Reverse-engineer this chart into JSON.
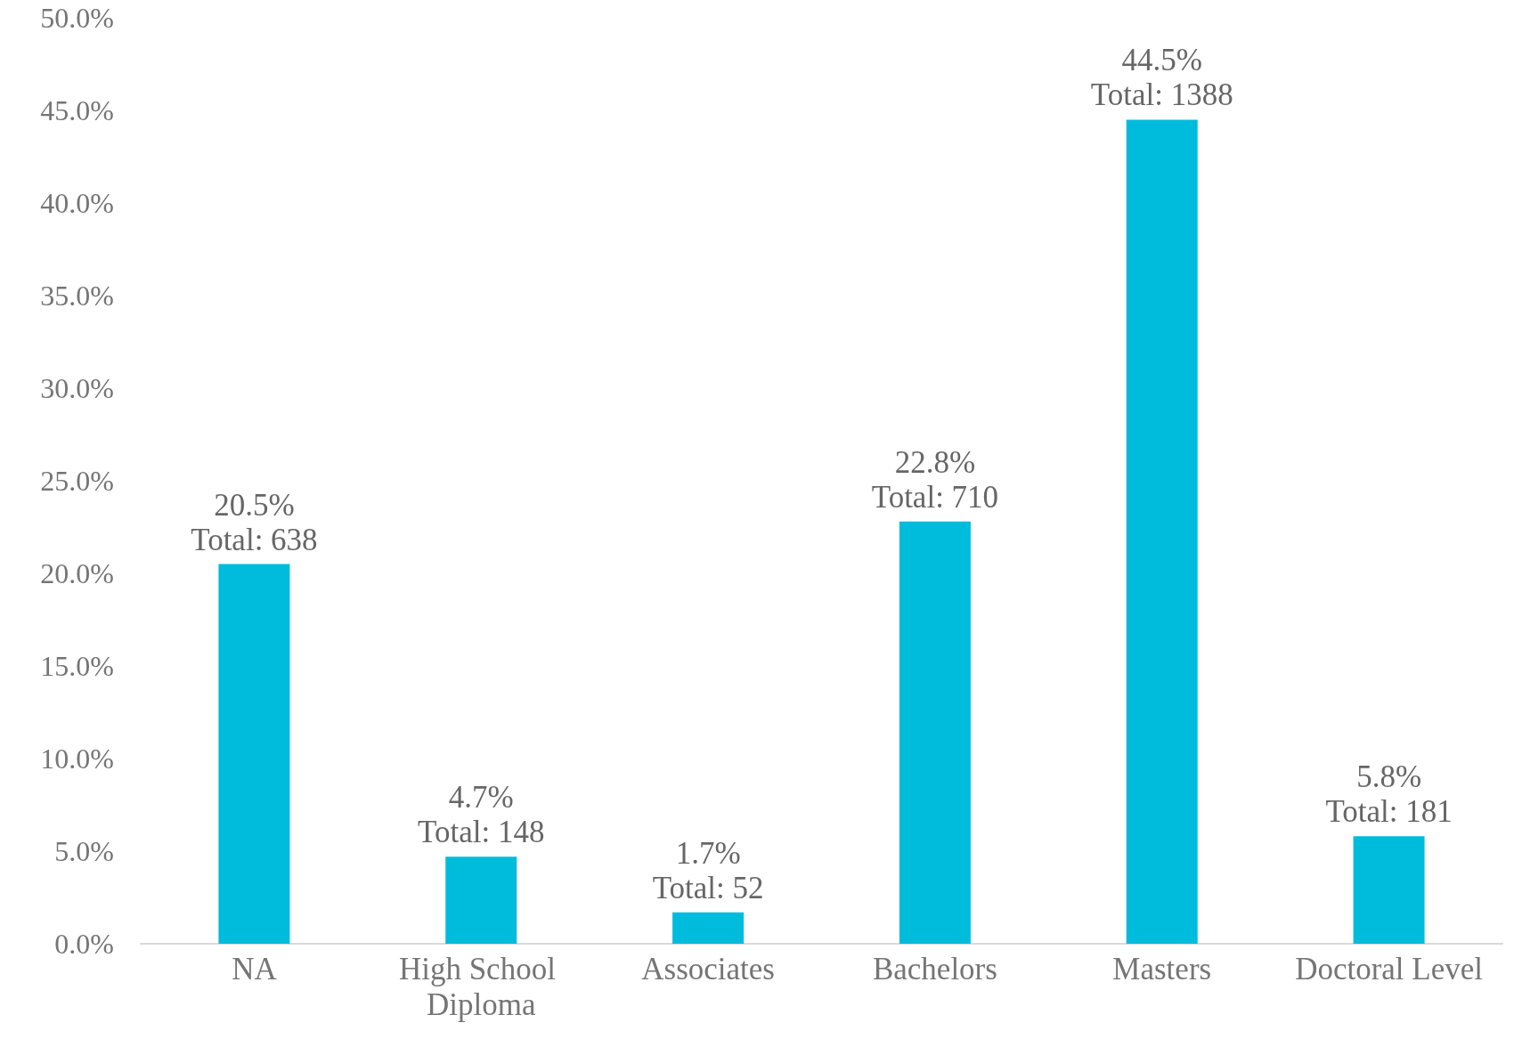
{
  "chart_data": {
    "type": "bar",
    "categories": [
      "NA",
      "High School Diploma",
      "Associates",
      "Bachelors",
      "Masters",
      "Doctoral Level"
    ],
    "values": [
      20.5,
      4.7,
      1.7,
      22.8,
      44.5,
      5.8
    ],
    "value_labels": [
      "20.5%\nTotal: 638",
      "4.7%\nTotal: 148",
      "1.7%\nTotal: 52",
      "22.8%\nTotal: 710",
      "44.5%\nTotal: 1388",
      "5.8%\nTotal: 181"
    ],
    "color": "#00bcdc",
    "ylim": [
      0,
      50
    ],
    "yticks": [
      {
        "value": 0,
        "label": "0.0%"
      },
      {
        "value": 5,
        "label": "5.0%"
      },
      {
        "value": 10,
        "label": "10.0%"
      },
      {
        "value": 15,
        "label": "15.0%"
      },
      {
        "value": 20,
        "label": "20.0%"
      },
      {
        "value": 25,
        "label": "25.0%"
      },
      {
        "value": 30,
        "label": "30.0%"
      },
      {
        "value": 35,
        "label": "35.0%"
      },
      {
        "value": 40,
        "label": "40.0%"
      },
      {
        "value": 45,
        "label": "45.0%"
      },
      {
        "value": 50,
        "label": "50.0%"
      }
    ],
    "grid": false
  }
}
